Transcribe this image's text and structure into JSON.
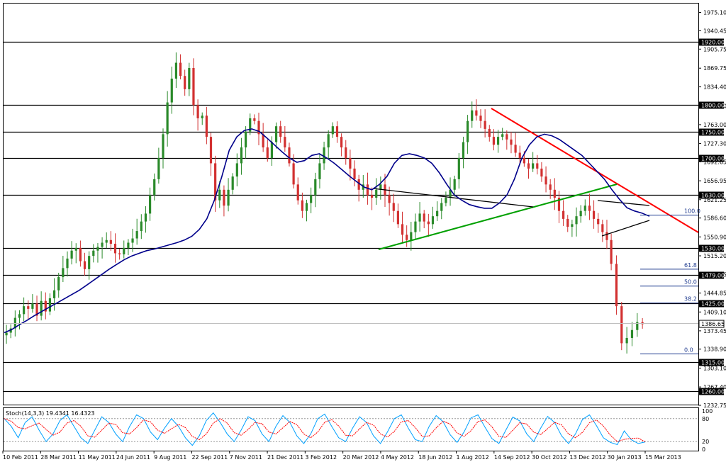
{
  "chart_data": {
    "type": "candlestick",
    "ylim": [
      1232.75,
      1990
    ],
    "y_ticks": [
      "1975.10",
      "1940.45",
      "1905.75",
      "1869.75",
      "1834.40",
      "1798.70",
      "1763.00",
      "1727.30",
      "1692.65",
      "1656.95",
      "1621.25",
      "1586.60",
      "1550.90",
      "1515.20",
      "1479.55",
      "1444.85",
      "1409.10",
      "1373.45",
      "1338.90",
      "1303.10",
      "1267.40",
      "1232.75"
    ],
    "x_ticks": [
      "10 Feb 2011",
      "28 Mar 2011",
      "11 May 2011",
      "24 Jun 2011",
      "9 Aug 2011",
      "22 Sep 2011",
      "7 Nov 2011",
      "21 Dec 2011",
      "3 Feb 2012",
      "20 Mar 2012",
      "4 May 2012",
      "18 Jun 2012",
      "1 Aug 2012",
      "14 Sep 2012",
      "30 Oct 2012",
      "13 Dec 2012",
      "30 Jan 2013",
      "15 Mar 2013"
    ],
    "horizontal_levels": [
      "1920.00",
      "1800.00",
      "1750.00",
      "1700.00",
      "1630.00",
      "1530.00",
      "1479.00",
      "1425.00",
      "1315.00",
      "1260.00"
    ],
    "current_price": "1386.65",
    "fibonacci": [
      {
        "label": "100.0",
        "value": 1592
      },
      {
        "label": "61.8",
        "value": 1490
      },
      {
        "label": "50.0",
        "value": 1458
      },
      {
        "label": "38.2",
        "value": 1426
      },
      {
        "label": "0.0",
        "value": 1330
      }
    ],
    "closes": [
      1370,
      1378,
      1398,
      1405,
      1420,
      1415,
      1425,
      1402,
      1430,
      1410,
      1435,
      1450,
      1475,
      1492,
      1510,
      1525,
      1530,
      1505,
      1490,
      1515,
      1525,
      1532,
      1540,
      1545,
      1538,
      1520,
      1518,
      1530,
      1540,
      1548,
      1562,
      1580,
      1595,
      1630,
      1660,
      1700,
      1745,
      1805,
      1850,
      1880,
      1855,
      1830,
      1870,
      1800,
      1775,
      1780,
      1740,
      1690,
      1620,
      1640,
      1610,
      1640,
      1665,
      1690,
      1720,
      1750,
      1775,
      1770,
      1745,
      1720,
      1700,
      1730,
      1760,
      1740,
      1720,
      1690,
      1650,
      1620,
      1600,
      1615,
      1630,
      1660,
      1690,
      1720,
      1745,
      1760,
      1740,
      1720,
      1700,
      1680,
      1660,
      1640,
      1650,
      1630,
      1625,
      1640,
      1650,
      1630,
      1615,
      1600,
      1575,
      1555,
      1545,
      1560,
      1580,
      1595,
      1580,
      1575,
      1590,
      1600,
      1615,
      1625,
      1640,
      1660,
      1700,
      1730,
      1770,
      1790,
      1780,
      1770,
      1755,
      1740,
      1725,
      1740,
      1745,
      1735,
      1725,
      1710,
      1700,
      1690,
      1680,
      1690,
      1680,
      1665,
      1650,
      1640,
      1625,
      1600,
      1585,
      1570,
      1575,
      1590,
      1600,
      1610,
      1600,
      1585,
      1575,
      1560,
      1545,
      1500,
      1420,
      1350,
      1360,
      1375,
      1390,
      1386
    ],
    "ma": [
      1370,
      1376,
      1385,
      1393,
      1402,
      1410,
      1418,
      1426,
      1434,
      1442,
      1450,
      1460,
      1470,
      1480,
      1490,
      1499,
      1508,
      1515,
      1520,
      1525,
      1528,
      1532,
      1536,
      1540,
      1545,
      1552,
      1565,
      1585,
      1620,
      1665,
      1715,
      1740,
      1752,
      1755,
      1750,
      1738,
      1725,
      1712,
      1700,
      1692,
      1695,
      1705,
      1708,
      1700,
      1690,
      1678,
      1666,
      1655,
      1645,
      1640,
      1650,
      1665,
      1690,
      1705,
      1708,
      1705,
      1700,
      1690,
      1672,
      1650,
      1630,
      1620,
      1612,
      1608,
      1605,
      1605,
      1615,
      1630,
      1660,
      1700,
      1725,
      1740,
      1745,
      1742,
      1735,
      1725,
      1715,
      1705,
      1690,
      1675,
      1660,
      1640,
      1622,
      1606,
      1600,
      1596,
      1590
    ],
    "stochastic": {
      "label": "Stoch(14,3,3) 19.4341 16.4323",
      "levels": [
        0,
        20,
        80,
        100
      ],
      "k": [
        80,
        60,
        30,
        70,
        85,
        50,
        20,
        40,
        75,
        90,
        60,
        30,
        15,
        50,
        85,
        70,
        40,
        20,
        60,
        90,
        80,
        45,
        25,
        55,
        80,
        60,
        30,
        10,
        35,
        75,
        95,
        70,
        40,
        20,
        50,
        85,
        75,
        40,
        20,
        60,
        88,
        70,
        35,
        15,
        40,
        80,
        92,
        60,
        30,
        20,
        55,
        85,
        70,
        35,
        15,
        45,
        80,
        90,
        55,
        25,
        20,
        60,
        88,
        72,
        38,
        18,
        45,
        82,
        90,
        58,
        28,
        15,
        50,
        84,
        74,
        40,
        20,
        55,
        86,
        70,
        35,
        15,
        40,
        78,
        90,
        62,
        30,
        18,
        12,
        48,
        25,
        15,
        19
      ]
    }
  }
}
